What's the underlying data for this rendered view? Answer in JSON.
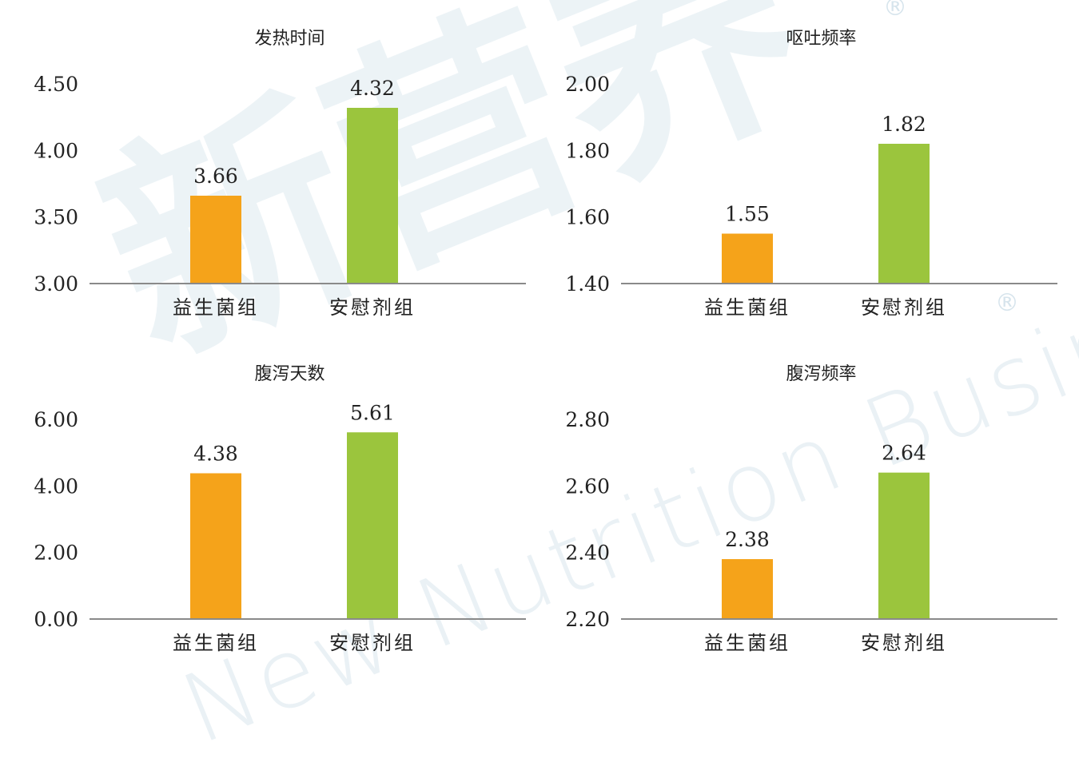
{
  "watermark": {
    "cn": "新营养",
    "en": "New Nutrition Business",
    "reg": "®"
  },
  "colors": {
    "probiotic": "#F5A31A",
    "placebo": "#9BC53D",
    "axis": "#8a8a8a",
    "text": "#222222"
  },
  "chart_data": [
    {
      "type": "bar",
      "title": "发热时间",
      "categories": [
        "益生菌组",
        "安慰剂组"
      ],
      "values": [
        3.66,
        4.32
      ],
      "value_labels": [
        "3.66",
        "4.32"
      ],
      "yticks": [
        "3.00",
        "3.50",
        "4.00",
        "4.50"
      ],
      "ylim": [
        3.0,
        4.5
      ],
      "xlabel": "",
      "ylabel": ""
    },
    {
      "type": "bar",
      "title": "呕吐频率",
      "categories": [
        "益生菌组",
        "安慰剂组"
      ],
      "values": [
        1.55,
        1.82
      ],
      "value_labels": [
        "1.55",
        "1.82"
      ],
      "yticks": [
        "1.40",
        "1.60",
        "1.80",
        "2.00"
      ],
      "ylim": [
        1.4,
        2.0
      ],
      "xlabel": "",
      "ylabel": ""
    },
    {
      "type": "bar",
      "title": "腹泻天数",
      "categories": [
        "益生菌组",
        "安慰剂组"
      ],
      "values": [
        4.38,
        5.61
      ],
      "value_labels": [
        "4.38",
        "5.61"
      ],
      "yticks": [
        "0.00",
        "2.00",
        "4.00",
        "6.00"
      ],
      "ylim": [
        0.0,
        6.0
      ],
      "xlabel": "",
      "ylabel": ""
    },
    {
      "type": "bar",
      "title": "腹泻频率",
      "categories": [
        "益生菌组",
        "安慰剂组"
      ],
      "values": [
        2.38,
        2.64
      ],
      "value_labels": [
        "2.38",
        "2.64"
      ],
      "yticks": [
        "2.20",
        "2.40",
        "2.60",
        "2.80"
      ],
      "ylim": [
        2.2,
        2.8
      ],
      "xlabel": "",
      "ylabel": ""
    }
  ]
}
